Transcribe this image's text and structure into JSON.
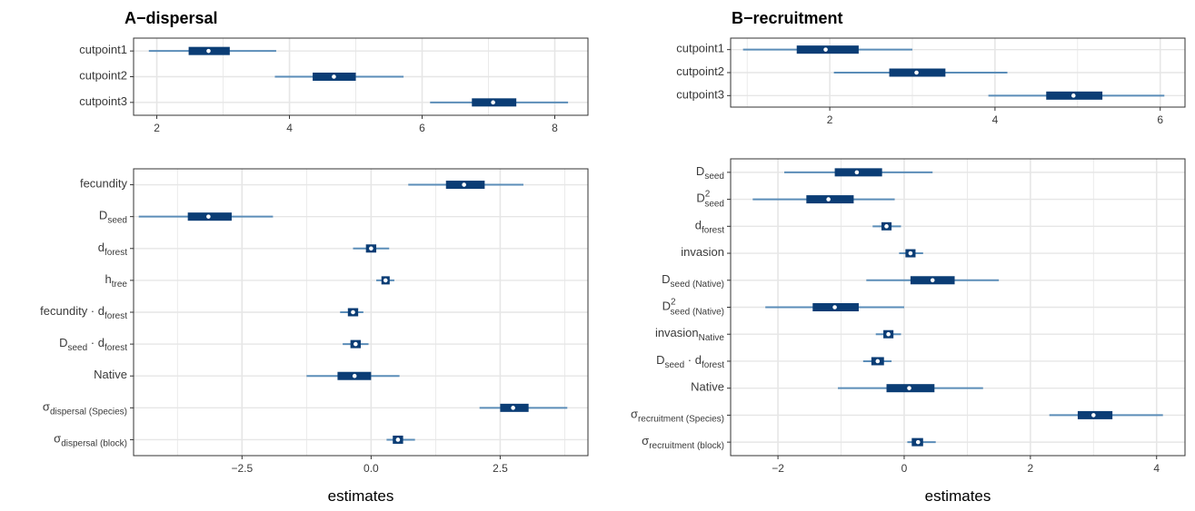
{
  "colors": {
    "thick": "#0b3d75",
    "thin": "#5b8db8",
    "grid": "#e6e6e6",
    "frame": "#333333",
    "point_fill": "#ffffff"
  },
  "panels": [
    {
      "title": "A−dispersal"
    },
    {
      "title": "B−recruitment"
    }
  ],
  "chart_data": [
    {
      "type": "interval",
      "title": "A−dispersal",
      "xlim": [
        1.65,
        8.5
      ],
      "xticks": [
        2,
        4,
        6,
        8
      ],
      "xlabel": "",
      "grid": true,
      "rows": [
        {
          "label": "cutpoint1",
          "est": 2.78,
          "inner": [
            2.48,
            3.1
          ],
          "outer": [
            1.88,
            3.8
          ]
        },
        {
          "label": "cutpoint2",
          "est": 4.67,
          "inner": [
            4.35,
            5.0
          ],
          "outer": [
            3.78,
            5.72
          ]
        },
        {
          "label": "cutpoint3",
          "est": 7.07,
          "inner": [
            6.75,
            7.42
          ],
          "outer": [
            6.12,
            8.2
          ]
        }
      ]
    },
    {
      "type": "interval",
      "title": "",
      "xlim": [
        -4.6,
        4.2
      ],
      "xticks": [
        -2.5,
        0.0,
        2.5
      ],
      "xlabel": "estimates",
      "grid": true,
      "rows": [
        {
          "label": "fecundity",
          "est": 1.8,
          "inner": [
            1.45,
            2.2
          ],
          "outer": [
            0.72,
            2.95
          ]
        },
        {
          "label": "D",
          "sub": "seed",
          "est": -3.15,
          "inner": [
            -3.55,
            -2.7
          ],
          "outer": [
            -4.5,
            -1.9
          ]
        },
        {
          "label": "d",
          "sub": "forest",
          "est": 0.0,
          "inner": [
            -0.1,
            0.1
          ],
          "outer": [
            -0.35,
            0.35
          ]
        },
        {
          "label": "h",
          "sub": "tree",
          "est": 0.28,
          "inner": [
            0.2,
            0.36
          ],
          "outer": [
            0.1,
            0.45
          ]
        },
        {
          "label": "fecundity · d",
          "sub": "forest",
          "est": -0.35,
          "inner": [
            -0.45,
            -0.25
          ],
          "outer": [
            -0.6,
            -0.15
          ]
        },
        {
          "label": "D",
          "sub": "seed",
          "label2": " · d",
          "sub2": "forest",
          "est": -0.3,
          "inner": [
            -0.4,
            -0.2
          ],
          "outer": [
            -0.55,
            -0.05
          ]
        },
        {
          "label": "Native",
          "est": -0.32,
          "inner": [
            -0.65,
            0.0
          ],
          "outer": [
            -1.25,
            0.55
          ]
        },
        {
          "label": "σ",
          "sub": "dispersal (Species)",
          "est": 2.75,
          "inner": [
            2.5,
            3.05
          ],
          "outer": [
            2.1,
            3.8
          ]
        },
        {
          "label": "σ",
          "sub": "dispersal (block)",
          "est": 0.52,
          "inner": [
            0.42,
            0.62
          ],
          "outer": [
            0.3,
            0.85
          ]
        }
      ]
    },
    {
      "type": "interval",
      "title": "B−recruitment",
      "xlim": [
        0.8,
        6.3
      ],
      "xticks": [
        2,
        4,
        6
      ],
      "xlabel": "",
      "grid": true,
      "rows": [
        {
          "label": "cutpoint1",
          "est": 1.95,
          "inner": [
            1.6,
            2.35
          ],
          "outer": [
            0.95,
            3.0
          ]
        },
        {
          "label": "cutpoint2",
          "est": 3.05,
          "inner": [
            2.72,
            3.4
          ],
          "outer": [
            2.05,
            4.15
          ]
        },
        {
          "label": "cutpoint3",
          "est": 4.95,
          "inner": [
            4.62,
            5.3
          ],
          "outer": [
            3.92,
            6.05
          ]
        }
      ]
    },
    {
      "type": "interval",
      "title": "",
      "xlim": [
        -2.75,
        4.45
      ],
      "xticks": [
        -2,
        0,
        2,
        4
      ],
      "xlabel": "estimates",
      "grid": true,
      "rows": [
        {
          "label": "D",
          "sub": "seed",
          "est": -0.75,
          "inner": [
            -1.1,
            -0.35
          ],
          "outer": [
            -1.9,
            0.45
          ]
        },
        {
          "label": "D",
          "sup": "2",
          "sub": "seed",
          "est": -1.2,
          "inner": [
            -1.55,
            -0.8
          ],
          "outer": [
            -2.4,
            -0.15
          ]
        },
        {
          "label": "d",
          "sub": "forest",
          "est": -0.28,
          "inner": [
            -0.36,
            -0.2
          ],
          "outer": [
            -0.5,
            -0.05
          ]
        },
        {
          "label": "invasion",
          "est": 0.1,
          "inner": [
            0.02,
            0.18
          ],
          "outer": [
            -0.08,
            0.3
          ]
        },
        {
          "label": "D",
          "sub": "seed (Native)",
          "est": 0.45,
          "inner": [
            0.1,
            0.8
          ],
          "outer": [
            -0.6,
            1.5
          ]
        },
        {
          "label": "D",
          "sup": "2",
          "sub": "seed (Native)",
          "est": -1.1,
          "inner": [
            -1.45,
            -0.72
          ],
          "outer": [
            -2.2,
            0.0
          ]
        },
        {
          "label": "invasion",
          "sub": "Native",
          "est": -0.25,
          "inner": [
            -0.33,
            -0.17
          ],
          "outer": [
            -0.45,
            -0.05
          ]
        },
        {
          "label": "D",
          "sub": "seed",
          "label2": " · d",
          "sub2": "forest",
          "est": -0.42,
          "inner": [
            -0.52,
            -0.32
          ],
          "outer": [
            -0.65,
            -0.2
          ]
        },
        {
          "label": "Native",
          "est": 0.08,
          "inner": [
            -0.28,
            0.48
          ],
          "outer": [
            -1.05,
            1.25
          ]
        },
        {
          "label": "σ",
          "sub": "recruitment (Species)",
          "est": 3.0,
          "inner": [
            2.75,
            3.3
          ],
          "outer": [
            2.3,
            4.1
          ]
        },
        {
          "label": "σ",
          "sub": "recruitment (block)",
          "est": 0.22,
          "inner": [
            0.12,
            0.3
          ],
          "outer": [
            0.05,
            0.5
          ]
        }
      ]
    }
  ]
}
